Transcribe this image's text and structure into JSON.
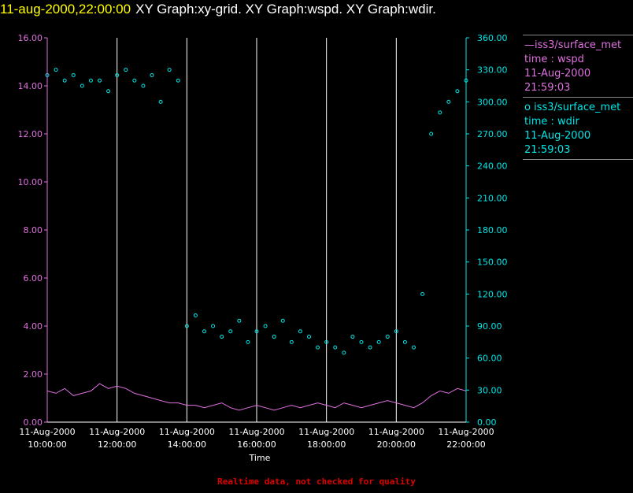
{
  "header": {
    "timestamp": "11-aug-2000,22:00:00",
    "titles": "XY Graph:xy-grid.  XY Graph:wspd.  XY Graph:wdir."
  },
  "footer": {
    "note": "Realtime data, not checked for quality"
  },
  "legend": {
    "wspd": {
      "symbol": "—",
      "source": "iss3/surface_met",
      "var": "time : wspd",
      "date": "11-Aug-2000",
      "time": "21:59:03"
    },
    "wdir": {
      "symbol": "o",
      "source": "iss3/surface_met",
      "var": "time : wdir",
      "date": "11-Aug-2000",
      "time": "21:59:03"
    }
  },
  "colors": {
    "wspd": "#e070e0",
    "wdir": "#00e6e6",
    "grid": "#ffffff",
    "background": "#000000"
  },
  "chart_data": {
    "type": "line",
    "xlabel": "Time",
    "x_ticks": [
      {
        "date": "11-Aug-2000",
        "time": "10:00:00",
        "h": 10
      },
      {
        "date": "11-Aug-2000",
        "time": "12:00:00",
        "h": 12
      },
      {
        "date": "11-Aug-2000",
        "time": "14:00:00",
        "h": 14
      },
      {
        "date": "11-Aug-2000",
        "time": "16:00:00",
        "h": 16
      },
      {
        "date": "11-Aug-2000",
        "time": "18:00:00",
        "h": 18
      },
      {
        "date": "11-Aug-2000",
        "time": "20:00:00",
        "h": 20
      },
      {
        "date": "11-Aug-2000",
        "time": "22:00:00",
        "h": 22
      }
    ],
    "xlim": [
      10,
      22
    ],
    "y_left": {
      "ylim": [
        0,
        16
      ],
      "ticks": [
        "0.00",
        "2.00",
        "4.00",
        "6.00",
        "8.00",
        "10.00",
        "12.00",
        "14.00",
        "16.00"
      ]
    },
    "y_right": {
      "ylim": [
        0,
        360
      ],
      "ticks": [
        "0.00",
        "30.00",
        "60.00",
        "90.00",
        "120.00",
        "150.00",
        "180.00",
        "210.00",
        "240.00",
        "270.00",
        "300.00",
        "330.00",
        "360.00"
      ]
    },
    "grid": "vertical",
    "series": [
      {
        "name": "iss3/surface_met  time : wspd",
        "style": "line",
        "axis": "left",
        "x": [
          10.0,
          10.25,
          10.5,
          10.75,
          11.0,
          11.25,
          11.5,
          11.75,
          12.0,
          12.25,
          12.5,
          12.75,
          13.0,
          13.25,
          13.5,
          13.75,
          14.0,
          14.25,
          14.5,
          14.75,
          15.0,
          15.25,
          15.5,
          15.75,
          16.0,
          16.25,
          16.5,
          16.75,
          17.0,
          17.25,
          17.5,
          17.75,
          18.0,
          18.25,
          18.5,
          18.75,
          19.0,
          19.25,
          19.5,
          19.75,
          20.0,
          20.25,
          20.5,
          20.75,
          21.0,
          21.25,
          21.5,
          21.75,
          22.0
        ],
        "values": [
          1.3,
          1.2,
          1.4,
          1.1,
          1.2,
          1.3,
          1.6,
          1.4,
          1.5,
          1.4,
          1.2,
          1.1,
          1.0,
          0.9,
          0.8,
          0.8,
          0.7,
          0.7,
          0.6,
          0.7,
          0.8,
          0.6,
          0.5,
          0.6,
          0.7,
          0.6,
          0.5,
          0.6,
          0.7,
          0.6,
          0.7,
          0.8,
          0.7,
          0.6,
          0.8,
          0.7,
          0.6,
          0.7,
          0.8,
          0.9,
          0.8,
          0.7,
          0.6,
          0.8,
          1.1,
          1.3,
          1.2,
          1.4,
          1.3
        ]
      },
      {
        "name": "iss3/surface_met  time : wdir",
        "style": "scatter",
        "axis": "right",
        "x": [
          10.0,
          10.25,
          10.5,
          10.75,
          11.0,
          11.25,
          11.5,
          11.75,
          12.0,
          12.25,
          12.5,
          12.75,
          13.0,
          13.25,
          13.5,
          13.75,
          14.0,
          14.25,
          14.5,
          14.75,
          15.0,
          15.25,
          15.5,
          15.75,
          16.0,
          16.25,
          16.5,
          16.75,
          17.0,
          17.25,
          17.5,
          17.75,
          18.0,
          18.25,
          18.5,
          18.75,
          19.0,
          19.25,
          19.5,
          19.75,
          20.0,
          20.25,
          20.5,
          20.75,
          21.0,
          21.25,
          21.5,
          21.75,
          22.0
        ],
        "values": [
          325,
          330,
          320,
          325,
          315,
          320,
          320,
          310,
          325,
          330,
          320,
          315,
          325,
          300,
          330,
          320,
          90,
          100,
          85,
          90,
          80,
          85,
          95,
          75,
          85,
          90,
          80,
          95,
          75,
          85,
          80,
          70,
          75,
          70,
          65,
          80,
          75,
          70,
          75,
          80,
          85,
          75,
          70,
          120,
          270,
          290,
          300,
          310,
          320
        ]
      }
    ]
  }
}
